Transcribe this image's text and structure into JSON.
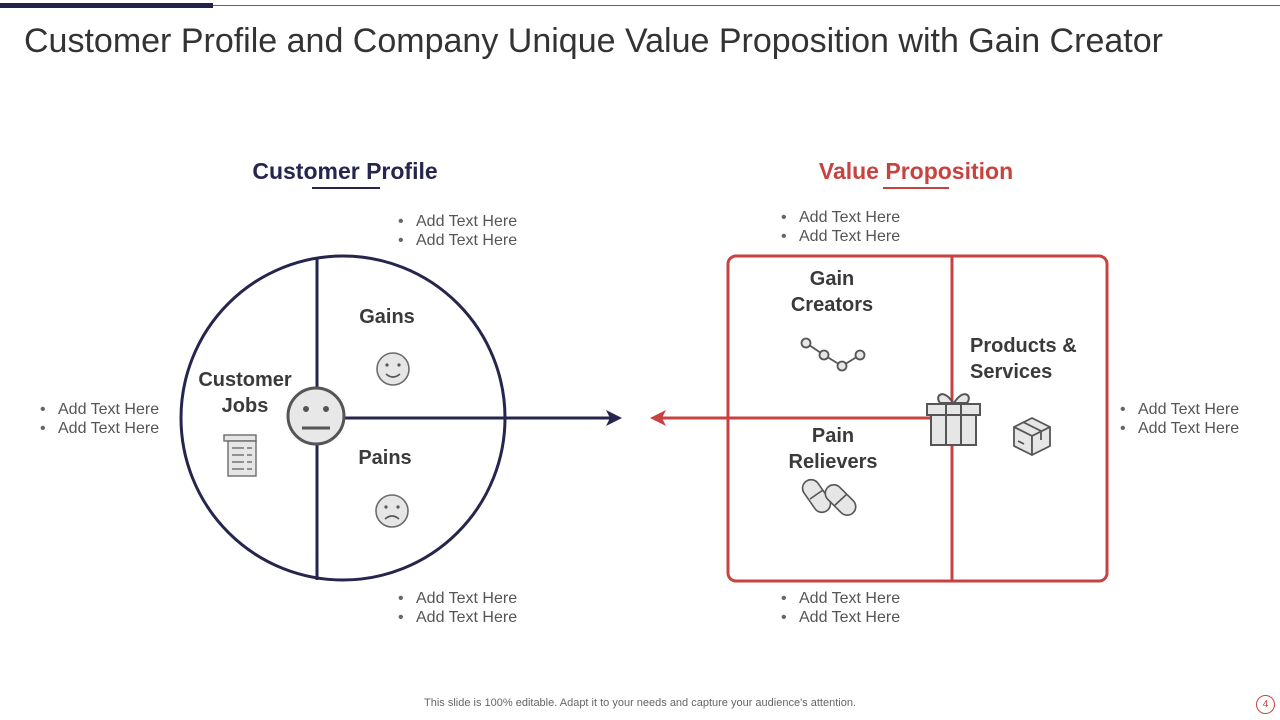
{
  "title": "Customer Profile and Company Unique Value Proposition with Gain Creator",
  "customer_profile": {
    "heading": "Customer Profile",
    "labels": {
      "jobs": "Customer\nJobs",
      "gains": "Gains",
      "pains": "Pains"
    },
    "bullets_top": [
      "Add Text Here",
      "Add Text Here"
    ],
    "bullets_left": [
      "Add Text Here",
      "Add Text Here"
    ],
    "bullets_bottom": [
      "Add Text Here",
      "Add Text Here"
    ]
  },
  "value_proposition": {
    "heading": "Value Proposition",
    "labels": {
      "gain_creators": "Gain\nCreators",
      "pain_relievers": "Pain\nRelievers",
      "products": "Products &\nServices"
    },
    "bullets_top": [
      "Add Text Here",
      "Add Text Here"
    ],
    "bullets_right": [
      "Add Text Here",
      "Add Text Here"
    ],
    "bullets_bottom": [
      "Add Text Here",
      "Add Text Here"
    ]
  },
  "colors": {
    "navy": "#25254d",
    "red": "#c8423f",
    "icon_gray": "#6b6b6b"
  },
  "icons": [
    "neutral-face-icon",
    "smile-face-icon",
    "sad-face-icon",
    "checklist-icon",
    "chart-line-icon",
    "gift-icon",
    "pills-icon",
    "box-icon"
  ],
  "footer": "This slide is 100% editable. Adapt it to your needs and capture your audience's attention.",
  "page_number": "4"
}
